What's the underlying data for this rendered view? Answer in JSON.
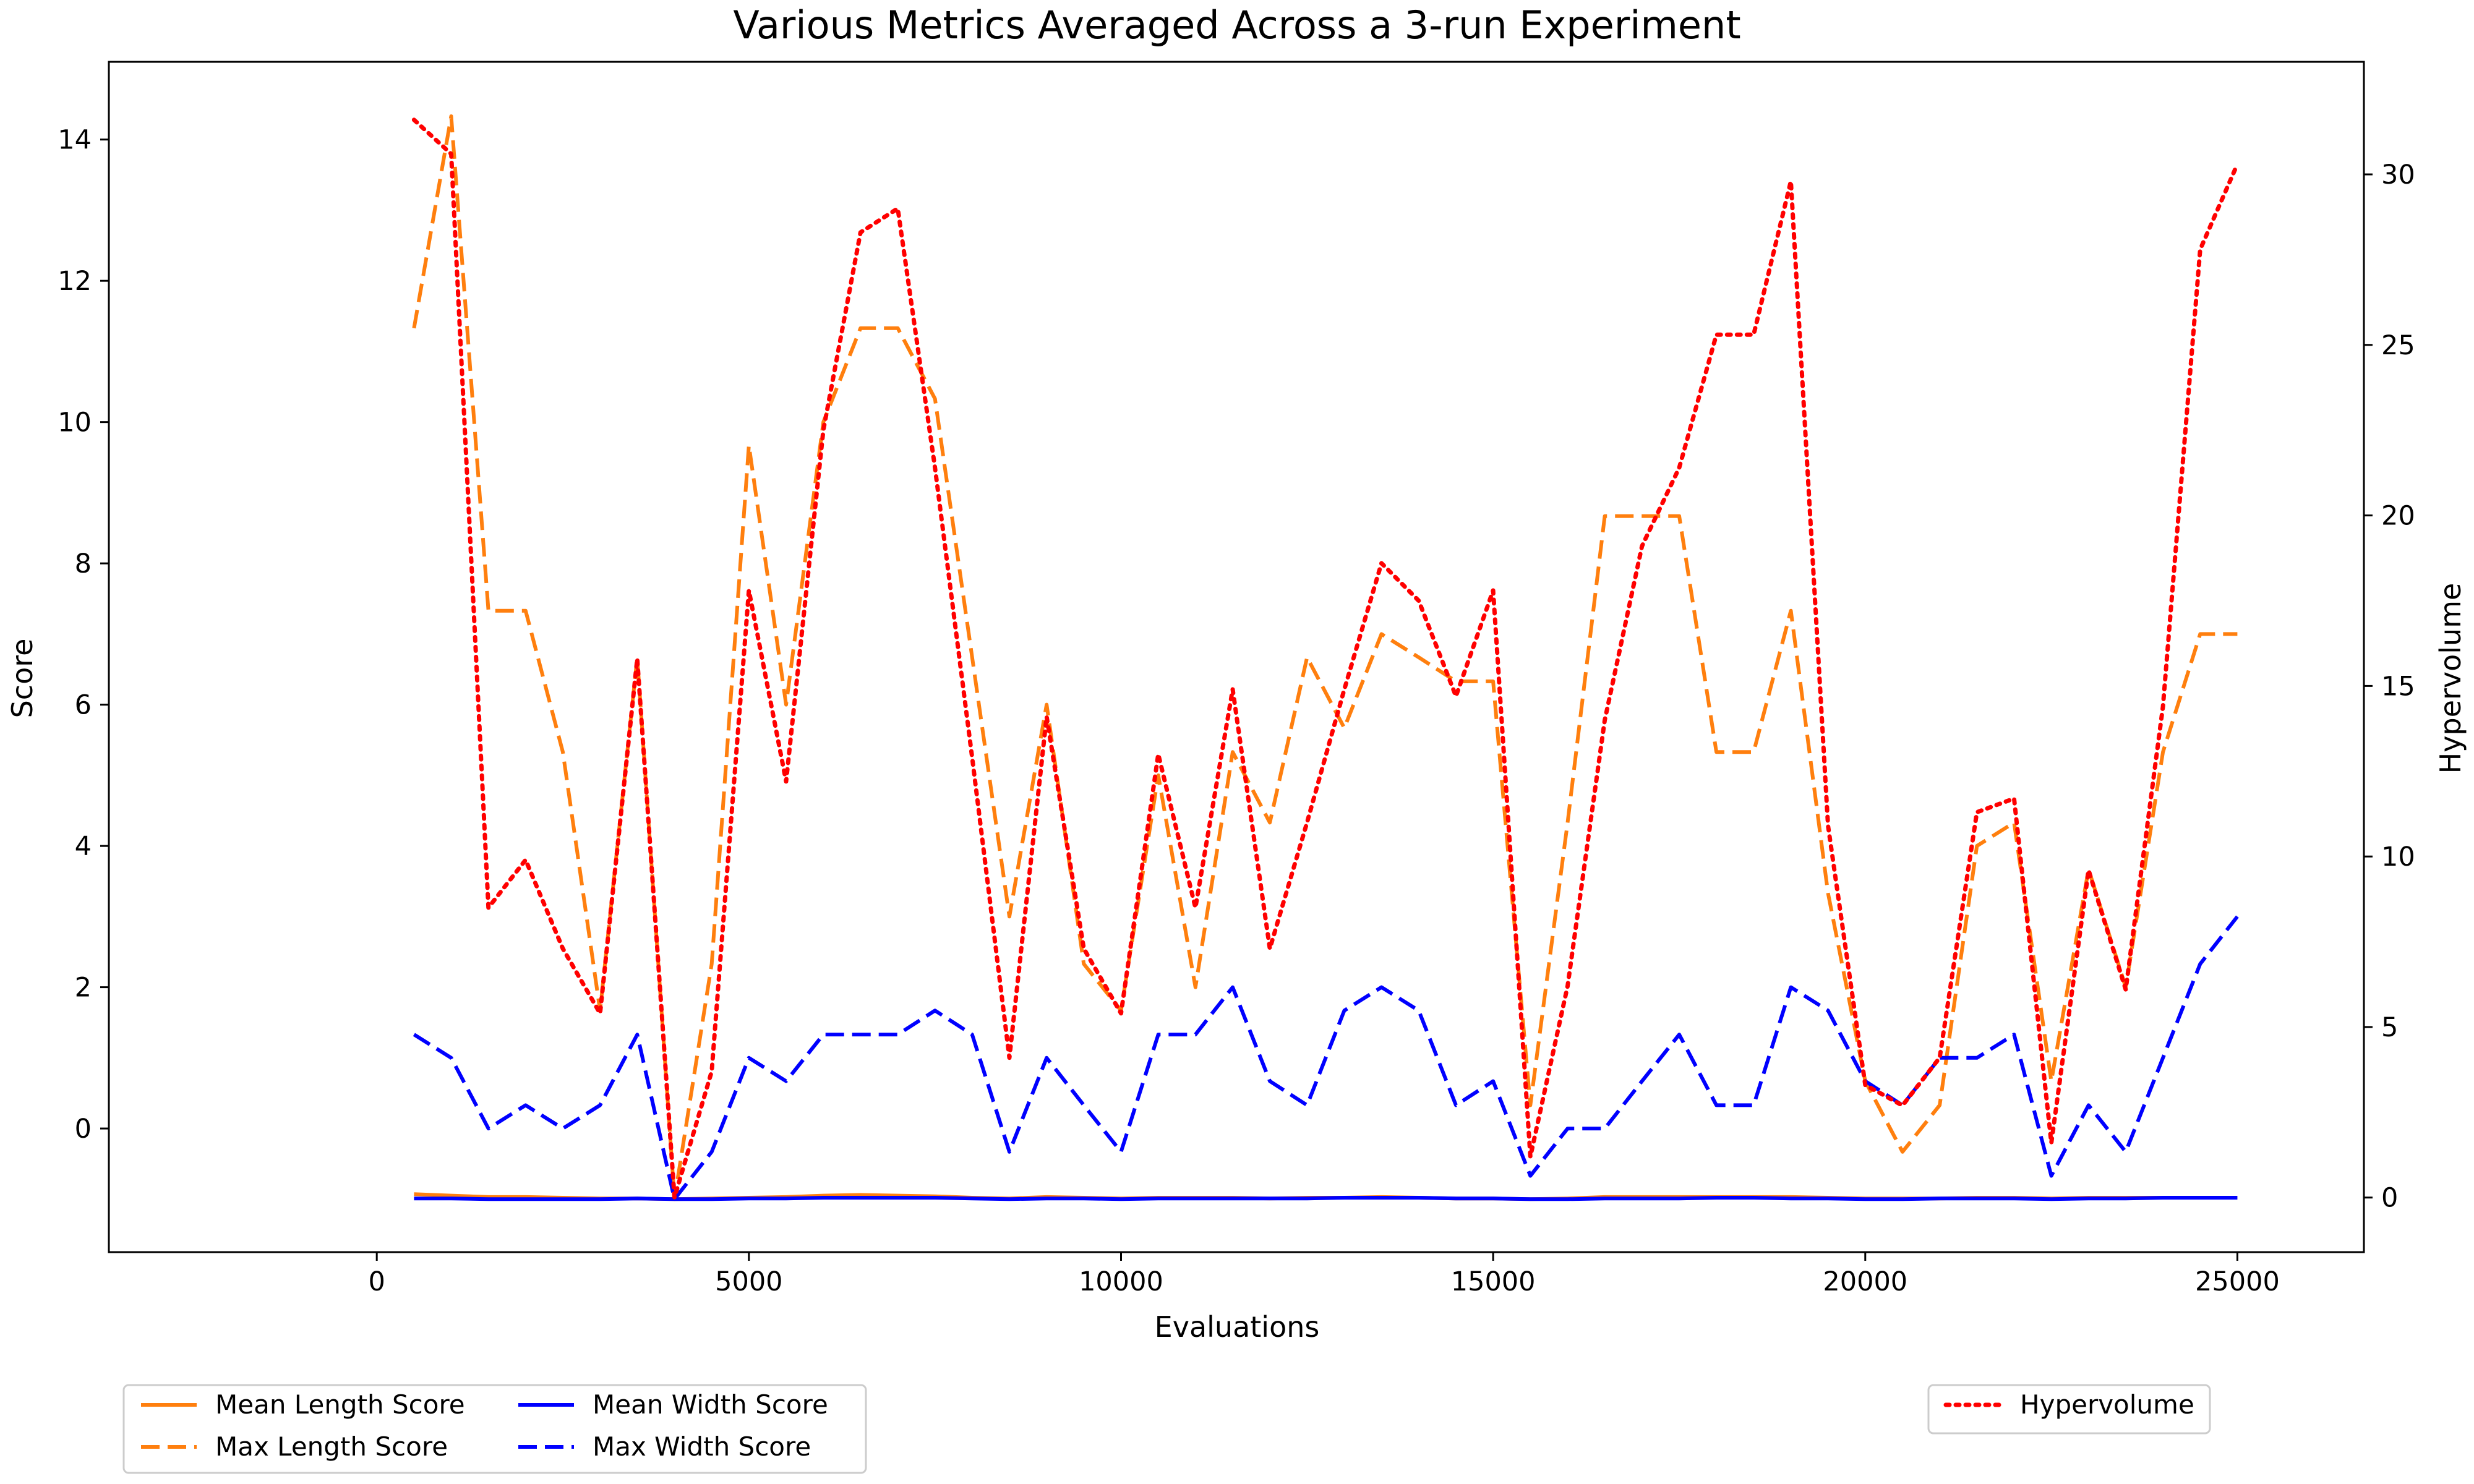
{
  "chart_data": {
    "type": "line",
    "title": "Various Metrics Averaged Across a 3-run Experiment",
    "xlabel": "Evaluations",
    "ylabel": "Score",
    "y2label": "Hypervolume",
    "xlim": [
      -3600,
      26700
    ],
    "ylim": [
      -1.75,
      15.1
    ],
    "y2lim": [
      -1.6,
      33.3
    ],
    "xticks": [
      0,
      5000,
      10000,
      15000,
      20000,
      25000
    ],
    "yticks": [
      0,
      2,
      4,
      6,
      8,
      10,
      12,
      14
    ],
    "y2ticks": [
      0,
      5,
      10,
      15,
      20,
      25,
      30
    ],
    "grid": false,
    "x": [
      500,
      1000,
      1500,
      2000,
      2500,
      3000,
      3500,
      4000,
      4500,
      5000,
      5500,
      6000,
      6500,
      7000,
      7500,
      8000,
      8500,
      9000,
      9500,
      10000,
      10500,
      11000,
      11500,
      12000,
      12500,
      13000,
      13500,
      14000,
      14500,
      15000,
      15500,
      16000,
      16500,
      17000,
      17500,
      18000,
      18500,
      19000,
      19500,
      20000,
      20500,
      21000,
      21500,
      22000,
      22500,
      23000,
      23500,
      24000,
      24500,
      25000
    ],
    "series": [
      {
        "name": "Mean Length Score",
        "axis": "left",
        "color": "#ff7f0e",
        "style": "solid",
        "values": [
          -0.93,
          -0.95,
          -0.97,
          -0.97,
          -0.98,
          -0.99,
          -0.99,
          -1.0,
          -0.99,
          -0.98,
          -0.97,
          -0.95,
          -0.94,
          -0.95,
          -0.96,
          -0.98,
          -0.99,
          -0.97,
          -0.98,
          -0.99,
          -0.98,
          -0.98,
          -0.98,
          -0.99,
          -0.98,
          -0.98,
          -0.97,
          -0.98,
          -0.99,
          -0.99,
          -1.0,
          -0.99,
          -0.97,
          -0.97,
          -0.97,
          -0.97,
          -0.97,
          -0.97,
          -0.98,
          -0.99,
          -0.99,
          -0.99,
          -0.98,
          -0.98,
          -0.99,
          -0.98,
          -0.98,
          -0.98,
          -0.98,
          -0.98
        ]
      },
      {
        "name": "Max Length Score",
        "axis": "left",
        "color": "#ff7f0e",
        "style": "dashed",
        "values": [
          11.33,
          14.33,
          7.33,
          7.33,
          5.33,
          1.67,
          6.67,
          -1.0,
          2.33,
          9.67,
          6.0,
          10.0,
          11.33,
          11.33,
          10.33,
          6.67,
          3.0,
          6.0,
          2.33,
          1.67,
          5.0,
          2.0,
          5.33,
          4.33,
          6.67,
          5.67,
          7.0,
          6.67,
          6.33,
          6.33,
          0.33,
          4.33,
          8.67,
          8.67,
          8.67,
          5.33,
          5.33,
          7.33,
          3.33,
          0.67,
          -0.33,
          0.33,
          4.0,
          4.33,
          0.67,
          3.67,
          2.0,
          5.33,
          7.0,
          7.0
        ]
      },
      {
        "name": "Mean Width Score",
        "axis": "left",
        "color": "#0000ff",
        "style": "solid",
        "values": [
          -0.99,
          -0.99,
          -1.0,
          -1.0,
          -1.0,
          -1.0,
          -0.99,
          -1.0,
          -1.0,
          -0.99,
          -0.99,
          -0.98,
          -0.98,
          -0.98,
          -0.98,
          -0.99,
          -1.0,
          -0.99,
          -0.99,
          -1.0,
          -0.99,
          -0.99,
          -0.99,
          -0.99,
          -0.99,
          -0.98,
          -0.98,
          -0.98,
          -0.99,
          -0.99,
          -1.0,
          -1.0,
          -0.99,
          -0.99,
          -0.99,
          -0.98,
          -0.98,
          -0.99,
          -0.99,
          -1.0,
          -1.0,
          -0.99,
          -0.99,
          -0.99,
          -1.0,
          -0.99,
          -0.99,
          -0.98,
          -0.98,
          -0.98
        ]
      },
      {
        "name": "Max Width Score",
        "axis": "left",
        "color": "#0000ff",
        "style": "dashed",
        "values": [
          1.33,
          1.0,
          0.0,
          0.33,
          0.0,
          0.33,
          1.33,
          -1.0,
          -0.33,
          1.0,
          0.67,
          1.33,
          1.33,
          1.33,
          1.67,
          1.33,
          -0.33,
          1.0,
          0.33,
          -0.33,
          1.33,
          1.33,
          2.0,
          0.67,
          0.33,
          1.67,
          2.0,
          1.67,
          0.33,
          0.67,
          -0.67,
          0.0,
          0.0,
          0.67,
          1.33,
          0.33,
          0.33,
          2.0,
          1.67,
          0.67,
          0.33,
          1.0,
          1.0,
          1.33,
          -0.67,
          0.33,
          -0.33,
          1.0,
          2.33,
          3.0
        ]
      },
      {
        "name": "Hypervolume",
        "axis": "right",
        "color": "#ff0000",
        "style": "dotted",
        "values": [
          31.6,
          30.6,
          8.5,
          9.9,
          7.3,
          5.4,
          15.8,
          0.0,
          3.7,
          17.8,
          12.2,
          22.5,
          28.3,
          29.0,
          21.4,
          12.9,
          4.1,
          14.1,
          7.3,
          5.4,
          13.0,
          8.5,
          14.9,
          7.3,
          11.0,
          14.9,
          18.6,
          17.5,
          14.7,
          17.8,
          1.2,
          6.2,
          14.0,
          19.1,
          21.4,
          25.3,
          25.3,
          29.8,
          10.9,
          3.3,
          2.7,
          4.1,
          11.3,
          11.7,
          1.6,
          9.6,
          6.1,
          14.4,
          27.8,
          30.3
        ]
      }
    ],
    "legends": [
      {
        "placement": "bottom-left-outside",
        "columns": 2,
        "entries": [
          "Mean Length Score",
          "Max Length Score",
          "Mean Width Score",
          "Max Width Score"
        ]
      },
      {
        "placement": "bottom-right-outside",
        "columns": 1,
        "entries": [
          "Hypervolume"
        ]
      }
    ]
  }
}
